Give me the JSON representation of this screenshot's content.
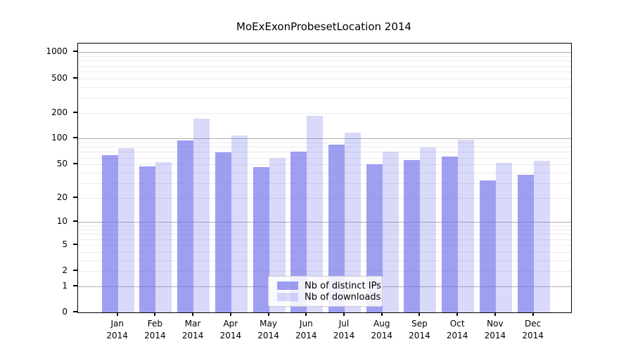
{
  "title": "MoExExonProbesetLocation 2014",
  "chart_data": {
    "type": "bar",
    "title": "MoExExonProbesetLocation 2014",
    "categories": [
      "Jan 2014",
      "Feb 2014",
      "Mar 2014",
      "Apr 2014",
      "May 2014",
      "Jun 2014",
      "Jul 2014",
      "Aug 2014",
      "Sep 2014",
      "Oct 2014",
      "Nov 2014",
      "Dec 2014"
    ],
    "series": [
      {
        "name": "Nb of distinct IPs",
        "color": "rgba(110,110,235,0.66)",
        "values": [
          64,
          47,
          95,
          69,
          46,
          71,
          85,
          50,
          56,
          62,
          32,
          38
        ]
      },
      {
        "name": "Nb of downloads",
        "color": "rgba(110,110,235,0.26)",
        "values": [
          78,
          53,
          172,
          108,
          60,
          184,
          118,
          71,
          79,
          98,
          52,
          55
        ]
      }
    ],
    "y_axis": {
      "scale": "log10(value+1)",
      "tick_labels": [
        0,
        1,
        2,
        5,
        10,
        20,
        50,
        100,
        200,
        500,
        1000
      ],
      "range": [
        0,
        1258
      ],
      "major_gridlines_at": [
        1,
        10,
        100,
        1000
      ]
    },
    "grid": {
      "major_color": "#b0b0b0",
      "minor_color": "#ebebeb"
    },
    "legend": {
      "position": "lower center"
    }
  }
}
